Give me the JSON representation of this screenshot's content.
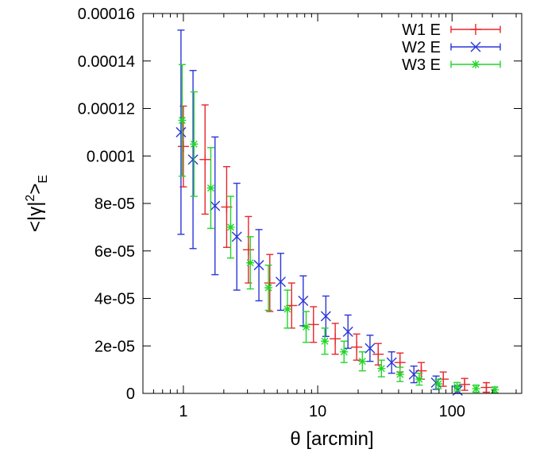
{
  "chart_data": {
    "type": "scatter",
    "xscale": "log",
    "xlabel": "θ [arcmin]",
    "ylabel": {
      "prefix": "<|γ|",
      "sup": "2",
      "mid": ">",
      "sub": "E"
    },
    "xlim": [
      0.5,
      330
    ],
    "ylim": [
      0,
      0.00016
    ],
    "xticks": [
      {
        "value": 1,
        "label": "1"
      },
      {
        "value": 10,
        "label": "10"
      },
      {
        "value": 100,
        "label": "100"
      }
    ],
    "yticks": [
      {
        "value": 0,
        "label": "0"
      },
      {
        "value": 2e-05,
        "label": "2e-05"
      },
      {
        "value": 4e-05,
        "label": "4e-05"
      },
      {
        "value": 6e-05,
        "label": "6e-05"
      },
      {
        "value": 8e-05,
        "label": "8e-05"
      },
      {
        "value": 0.0001,
        "label": "0.0001"
      },
      {
        "value": 0.00012,
        "label": "0.00012"
      },
      {
        "value": 0.00014,
        "label": "0.00014"
      },
      {
        "value": 0.00016,
        "label": "0.00016"
      }
    ],
    "series": [
      {
        "name": "W1 E",
        "color": "#e8262b",
        "marker": "plus",
        "points": [
          {
            "x": 1.0,
            "y": 0.000104,
            "yerr": 1.7e-05
          },
          {
            "x": 1.45,
            "y": 9.85e-05,
            "yerr": 2.3e-05
          },
          {
            "x": 2.1,
            "y": 7.85e-05,
            "yerr": 1.7e-05
          },
          {
            "x": 3.05,
            "y": 6.05e-05,
            "yerr": 1.4e-05
          },
          {
            "x": 4.4,
            "y": 4.65e-05,
            "yerr": 1.2e-05
          },
          {
            "x": 6.4,
            "y": 3.7e-05,
            "yerr": 9.5e-06
          },
          {
            "x": 9.3,
            "y": 2.9e-05,
            "yerr": 7.5e-06
          },
          {
            "x": 13.5,
            "y": 2.3e-05,
            "yerr": 6.5e-06
          },
          {
            "x": 19.5,
            "y": 1.95e-05,
            "yerr": 5.5e-06
          },
          {
            "x": 28.2,
            "y": 1.65e-05,
            "yerr": 4.5e-06
          },
          {
            "x": 41,
            "y": 1.3e-05,
            "yerr": 4e-06
          },
          {
            "x": 59,
            "y": 9.5e-06,
            "yerr": 3.5e-06
          },
          {
            "x": 86,
            "y": 6e-06,
            "yerr": 3e-06
          },
          {
            "x": 124,
            "y": 3.8e-06,
            "yerr": 2.5e-06
          },
          {
            "x": 180,
            "y": 2.5e-06,
            "yerr": 2e-06
          }
        ]
      },
      {
        "name": "W2 E",
        "color": "#2b35d8",
        "marker": "cross",
        "points": [
          {
            "x": 0.96,
            "y": 0.00011,
            "yerr": 4.3e-05
          },
          {
            "x": 1.18,
            "y": 9.85e-05,
            "yerr": 3.75e-05
          },
          {
            "x": 1.72,
            "y": 7.9e-05,
            "yerr": 2.9e-05
          },
          {
            "x": 2.5,
            "y": 6.6e-05,
            "yerr": 2.25e-05
          },
          {
            "x": 3.65,
            "y": 5.4e-05,
            "yerr": 1.5e-05
          },
          {
            "x": 5.3,
            "y": 4.7e-05,
            "yerr": 1.2e-05
          },
          {
            "x": 7.8,
            "y": 3.9e-05,
            "yerr": 1.05e-05
          },
          {
            "x": 11.5,
            "y": 3.25e-05,
            "yerr": 8.5e-06
          },
          {
            "x": 16.8,
            "y": 2.6e-05,
            "yerr": 7e-06
          },
          {
            "x": 24.5,
            "y": 1.9e-05,
            "yerr": 5.5e-06
          },
          {
            "x": 35.5,
            "y": 1.3e-05,
            "yerr": 4.5e-06
          },
          {
            "x": 52,
            "y": 8e-06,
            "yerr": 3.5e-06
          },
          {
            "x": 76,
            "y": 4.5e-06,
            "yerr": 2.8e-06
          },
          {
            "x": 110,
            "y": 1.2e-06,
            "yerr": 2e-06
          }
        ]
      },
      {
        "name": "W3 E",
        "color": "#21d629",
        "marker": "star",
        "points": [
          {
            "x": 0.98,
            "y": 0.000115,
            "yerr": 2.35e-05
          },
          {
            "x": 1.2,
            "y": 0.000105,
            "yerr": 2.2e-05
          },
          {
            "x": 1.6,
            "y": 8.65e-05,
            "yerr": 1.7e-05
          },
          {
            "x": 2.25,
            "y": 7e-05,
            "yerr": 1.3e-05
          },
          {
            "x": 3.15,
            "y": 5.5e-05,
            "yerr": 1.1e-05
          },
          {
            "x": 4.3,
            "y": 4.45e-05,
            "yerr": 9.5e-06
          },
          {
            "x": 5.95,
            "y": 3.55e-05,
            "yerr": 8e-06
          },
          {
            "x": 8.2,
            "y": 2.8e-05,
            "yerr": 6.5e-06
          },
          {
            "x": 11.3,
            "y": 2.2e-05,
            "yerr": 5.5e-06
          },
          {
            "x": 15.7,
            "y": 1.75e-05,
            "yerr": 4.5e-06
          },
          {
            "x": 21.5,
            "y": 1.35e-05,
            "yerr": 4e-06
          },
          {
            "x": 29.8,
            "y": 1.05e-05,
            "yerr": 3.5e-06
          },
          {
            "x": 41,
            "y": 8e-06,
            "yerr": 3e-06
          },
          {
            "x": 57,
            "y": 6e-06,
            "yerr": 2.5e-06
          },
          {
            "x": 79,
            "y": 4e-06,
            "yerr": 2e-06
          },
          {
            "x": 109,
            "y": 2.8e-06,
            "yerr": 1.8e-06
          },
          {
            "x": 151,
            "y": 2e-06,
            "yerr": 1.5e-06
          },
          {
            "x": 208,
            "y": 1.5e-06,
            "yerr": 1.2e-06
          }
        ]
      }
    ],
    "legend": {
      "position": "top-right"
    }
  }
}
